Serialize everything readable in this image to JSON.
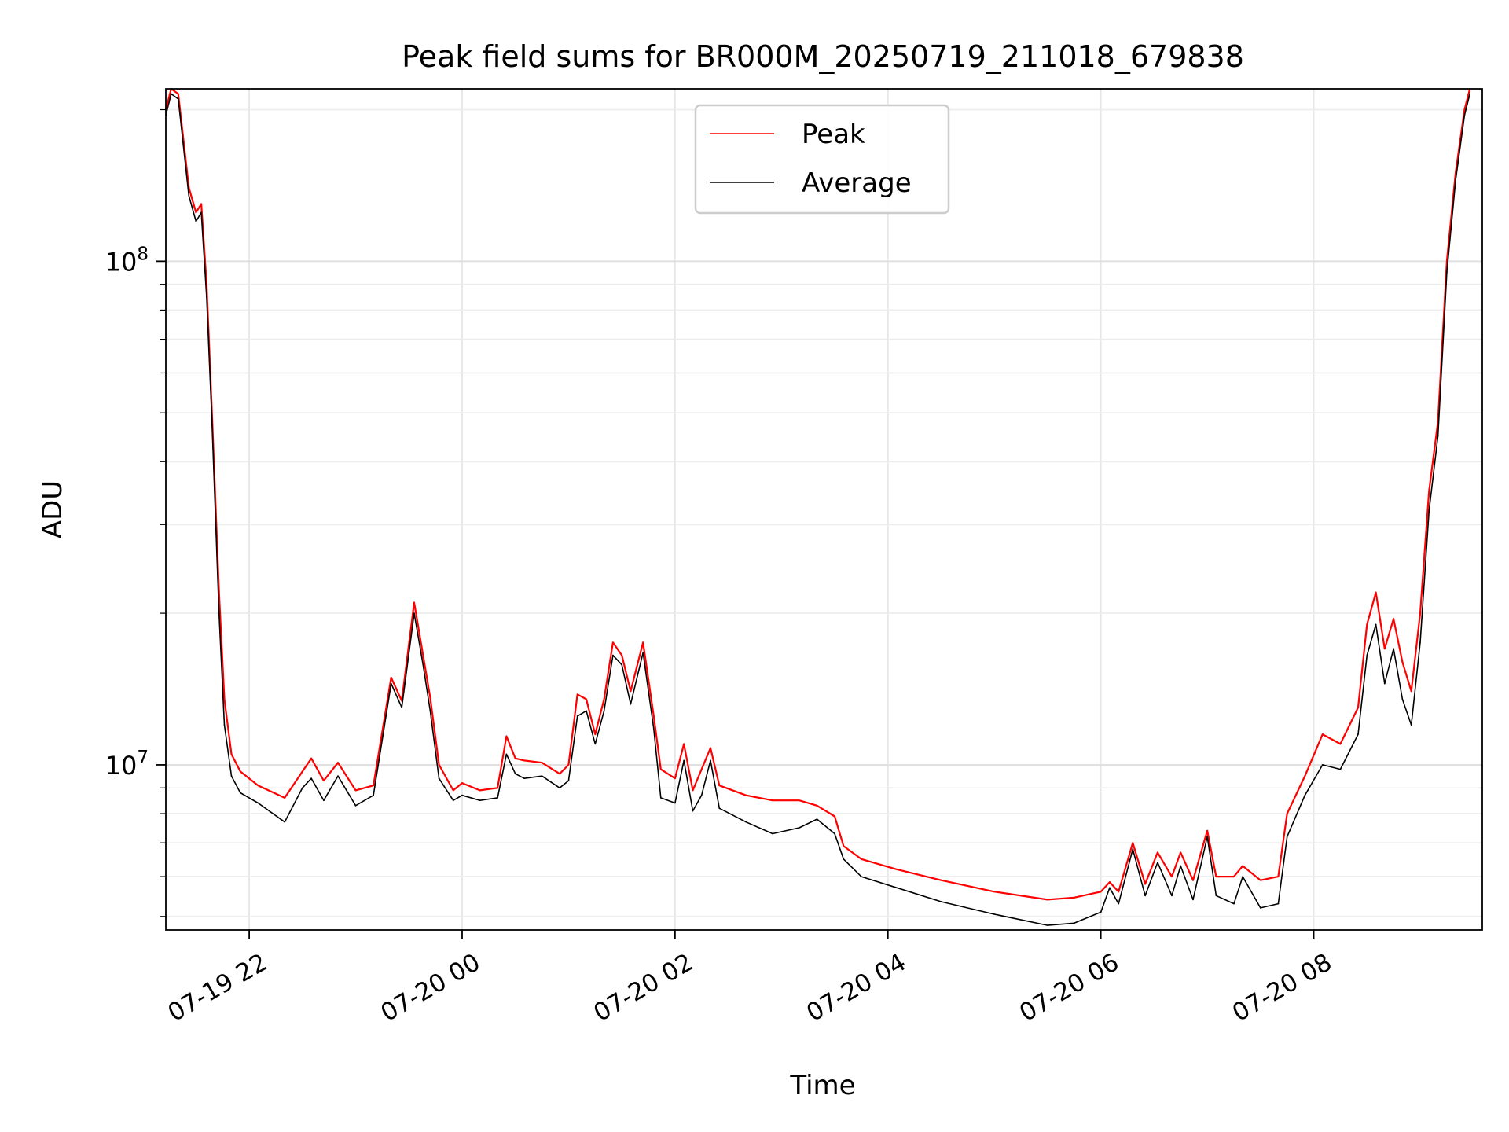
{
  "chart_data": {
    "type": "line",
    "title": "Peak field sums for BR000M_20250719_211018_679838",
    "xlabel": "Time",
    "ylabel": "ADU",
    "yscale": "log",
    "grid": true,
    "legend_position": "upper center",
    "xlim": [
      "2025-07-19 21:13",
      "2025-07-20 09:35"
    ],
    "ylim": [
      4700000,
      220000000
    ],
    "x_ticks": [
      {
        "label": "07-19 22",
        "value": "2025-07-19 22:00"
      },
      {
        "label": "07-20 00",
        "value": "2025-07-20 00:00"
      },
      {
        "label": "07-20 02",
        "value": "2025-07-20 02:00"
      },
      {
        "label": "07-20 04",
        "value": "2025-07-20 04:00"
      },
      {
        "label": "07-20 06",
        "value": "2025-07-20 06:00"
      },
      {
        "label": "07-20 08",
        "value": "2025-07-20 08:00"
      }
    ],
    "y_ticks": [
      {
        "label": "10",
        "sup": "7",
        "value": 10000000
      },
      {
        "label": "10",
        "sup": "8",
        "value": 100000000
      }
    ],
    "series": [
      {
        "name": "Peak",
        "color": "#ff0000",
        "points": [
          [
            "2025-07-19 21:13",
            200000000
          ],
          [
            "2025-07-19 21:16",
            220000000
          ],
          [
            "2025-07-19 21:20",
            215000000
          ],
          [
            "2025-07-19 21:26",
            140000000
          ],
          [
            "2025-07-19 21:30",
            125000000
          ],
          [
            "2025-07-19 21:33",
            130000000
          ],
          [
            "2025-07-19 21:36",
            90000000
          ],
          [
            "2025-07-19 21:39",
            50000000
          ],
          [
            "2025-07-19 21:43",
            22000000
          ],
          [
            "2025-07-19 21:46",
            13500000
          ],
          [
            "2025-07-19 21:50",
            10500000
          ],
          [
            "2025-07-19 21:55",
            9700000
          ],
          [
            "2025-07-19 22:05",
            9100000
          ],
          [
            "2025-07-19 22:20",
            8600000
          ],
          [
            "2025-07-19 22:30",
            9700000
          ],
          [
            "2025-07-19 22:35",
            10300000
          ],
          [
            "2025-07-19 22:42",
            9300000
          ],
          [
            "2025-07-19 22:50",
            10100000
          ],
          [
            "2025-07-19 23:00",
            8900000
          ],
          [
            "2025-07-19 23:10",
            9100000
          ],
          [
            "2025-07-19 23:20",
            14900000
          ],
          [
            "2025-07-19 23:26",
            13400000
          ],
          [
            "2025-07-19 23:33",
            21000000
          ],
          [
            "2025-07-19 23:38",
            16500000
          ],
          [
            "2025-07-19 23:42",
            13600000
          ],
          [
            "2025-07-19 23:47",
            10000000
          ],
          [
            "2025-07-19 23:55",
            8900000
          ],
          [
            "2025-07-20 00:00",
            9200000
          ],
          [
            "2025-07-20 00:10",
            8900000
          ],
          [
            "2025-07-20 00:20",
            9000000
          ],
          [
            "2025-07-20 00:25",
            11400000
          ],
          [
            "2025-07-20 00:30",
            10300000
          ],
          [
            "2025-07-20 00:35",
            10200000
          ],
          [
            "2025-07-20 00:45",
            10100000
          ],
          [
            "2025-07-20 00:55",
            9600000
          ],
          [
            "2025-07-20 01:00",
            10000000
          ],
          [
            "2025-07-20 01:05",
            13800000
          ],
          [
            "2025-07-20 01:10",
            13500000
          ],
          [
            "2025-07-20 01:15",
            11500000
          ],
          [
            "2025-07-20 01:20",
            13500000
          ],
          [
            "2025-07-20 01:25",
            17500000
          ],
          [
            "2025-07-20 01:30",
            16500000
          ],
          [
            "2025-07-20 01:35",
            14000000
          ],
          [
            "2025-07-20 01:42",
            17500000
          ],
          [
            "2025-07-20 01:48",
            12500000
          ],
          [
            "2025-07-20 01:52",
            9800000
          ],
          [
            "2025-07-20 02:00",
            9400000
          ],
          [
            "2025-07-20 02:05",
            11000000
          ],
          [
            "2025-07-20 02:10",
            8900000
          ],
          [
            "2025-07-20 02:15",
            9800000
          ],
          [
            "2025-07-20 02:20",
            10800000
          ],
          [
            "2025-07-20 02:25",
            9100000
          ],
          [
            "2025-07-20 02:40",
            8700000
          ],
          [
            "2025-07-20 02:55",
            8500000
          ],
          [
            "2025-07-20 03:10",
            8500000
          ],
          [
            "2025-07-20 03:20",
            8300000
          ],
          [
            "2025-07-20 03:30",
            7900000
          ],
          [
            "2025-07-20 03:35",
            6900000
          ],
          [
            "2025-07-20 03:45",
            6500000
          ],
          [
            "2025-07-20 04:05",
            6200000
          ],
          [
            "2025-07-20 04:30",
            5900000
          ],
          [
            "2025-07-20 05:00",
            5600000
          ],
          [
            "2025-07-20 05:30",
            5400000
          ],
          [
            "2025-07-20 05:45",
            5450000
          ],
          [
            "2025-07-20 06:00",
            5600000
          ],
          [
            "2025-07-20 06:05",
            5850000
          ],
          [
            "2025-07-20 06:10",
            5600000
          ],
          [
            "2025-07-20 06:18",
            7000000
          ],
          [
            "2025-07-20 06:25",
            5800000
          ],
          [
            "2025-07-20 06:32",
            6700000
          ],
          [
            "2025-07-20 06:40",
            6000000
          ],
          [
            "2025-07-20 06:45",
            6700000
          ],
          [
            "2025-07-20 06:52",
            5900000
          ],
          [
            "2025-07-20 07:00",
            7400000
          ],
          [
            "2025-07-20 07:05",
            6000000
          ],
          [
            "2025-07-20 07:15",
            6000000
          ],
          [
            "2025-07-20 07:20",
            6300000
          ],
          [
            "2025-07-20 07:30",
            5900000
          ],
          [
            "2025-07-20 07:40",
            6000000
          ],
          [
            "2025-07-20 07:45",
            8000000
          ],
          [
            "2025-07-20 07:55",
            9500000
          ],
          [
            "2025-07-20 08:05",
            11500000
          ],
          [
            "2025-07-20 08:15",
            11000000
          ],
          [
            "2025-07-20 08:25",
            13000000
          ],
          [
            "2025-07-20 08:30",
            19000000
          ],
          [
            "2025-07-20 08:35",
            22000000
          ],
          [
            "2025-07-20 08:40",
            17000000
          ],
          [
            "2025-07-20 08:45",
            19500000
          ],
          [
            "2025-07-20 08:50",
            16000000
          ],
          [
            "2025-07-20 08:55",
            14000000
          ],
          [
            "2025-07-20 09:00",
            20000000
          ],
          [
            "2025-07-20 09:05",
            35000000
          ],
          [
            "2025-07-20 09:10",
            48000000
          ],
          [
            "2025-07-20 09:15",
            100000000
          ],
          [
            "2025-07-20 09:20",
            150000000
          ],
          [
            "2025-07-20 09:25",
            200000000
          ],
          [
            "2025-07-20 09:28",
            220000000
          ]
        ]
      },
      {
        "name": "Average",
        "color": "#000000",
        "points": [
          [
            "2025-07-19 21:13",
            195000000
          ],
          [
            "2025-07-19 21:16",
            215000000
          ],
          [
            "2025-07-19 21:20",
            210000000
          ],
          [
            "2025-07-19 21:26",
            135000000
          ],
          [
            "2025-07-19 21:30",
            120000000
          ],
          [
            "2025-07-19 21:33",
            125000000
          ],
          [
            "2025-07-19 21:36",
            85000000
          ],
          [
            "2025-07-19 21:39",
            48000000
          ],
          [
            "2025-07-19 21:43",
            20000000
          ],
          [
            "2025-07-19 21:46",
            12000000
          ],
          [
            "2025-07-19 21:50",
            9500000
          ],
          [
            "2025-07-19 21:55",
            8800000
          ],
          [
            "2025-07-19 22:05",
            8400000
          ],
          [
            "2025-07-19 22:20",
            7700000
          ],
          [
            "2025-07-19 22:30",
            9000000
          ],
          [
            "2025-07-19 22:35",
            9400000
          ],
          [
            "2025-07-19 22:42",
            8500000
          ],
          [
            "2025-07-19 22:50",
            9500000
          ],
          [
            "2025-07-19 23:00",
            8300000
          ],
          [
            "2025-07-19 23:10",
            8700000
          ],
          [
            "2025-07-19 23:20",
            14500000
          ],
          [
            "2025-07-19 23:26",
            13000000
          ],
          [
            "2025-07-19 23:33",
            20000000
          ],
          [
            "2025-07-19 23:38",
            15800000
          ],
          [
            "2025-07-19 23:42",
            12800000
          ],
          [
            "2025-07-19 23:47",
            9400000
          ],
          [
            "2025-07-19 23:55",
            8500000
          ],
          [
            "2025-07-20 00:00",
            8700000
          ],
          [
            "2025-07-20 00:10",
            8500000
          ],
          [
            "2025-07-20 00:20",
            8600000
          ],
          [
            "2025-07-20 00:25",
            10500000
          ],
          [
            "2025-07-20 00:30",
            9600000
          ],
          [
            "2025-07-20 00:35",
            9400000
          ],
          [
            "2025-07-20 00:45",
            9500000
          ],
          [
            "2025-07-20 00:55",
            9000000
          ],
          [
            "2025-07-20 01:00",
            9300000
          ],
          [
            "2025-07-20 01:05",
            12500000
          ],
          [
            "2025-07-20 01:10",
            12800000
          ],
          [
            "2025-07-20 01:15",
            11000000
          ],
          [
            "2025-07-20 01:20",
            12800000
          ],
          [
            "2025-07-20 01:25",
            16500000
          ],
          [
            "2025-07-20 01:30",
            15800000
          ],
          [
            "2025-07-20 01:35",
            13200000
          ],
          [
            "2025-07-20 01:42",
            16700000
          ],
          [
            "2025-07-20 01:48",
            11800000
          ],
          [
            "2025-07-20 01:52",
            8600000
          ],
          [
            "2025-07-20 02:00",
            8400000
          ],
          [
            "2025-07-20 02:05",
            10200000
          ],
          [
            "2025-07-20 02:10",
            8100000
          ],
          [
            "2025-07-20 02:15",
            8700000
          ],
          [
            "2025-07-20 02:20",
            10200000
          ],
          [
            "2025-07-20 02:25",
            8200000
          ],
          [
            "2025-07-20 02:40",
            7700000
          ],
          [
            "2025-07-20 02:55",
            7300000
          ],
          [
            "2025-07-20 03:10",
            7500000
          ],
          [
            "2025-07-20 03:20",
            7800000
          ],
          [
            "2025-07-20 03:30",
            7300000
          ],
          [
            "2025-07-20 03:35",
            6500000
          ],
          [
            "2025-07-20 03:45",
            6000000
          ],
          [
            "2025-07-20 04:05",
            5700000
          ],
          [
            "2025-07-20 04:30",
            5350000
          ],
          [
            "2025-07-20 05:00",
            5050000
          ],
          [
            "2025-07-20 05:30",
            4800000
          ],
          [
            "2025-07-20 05:45",
            4850000
          ],
          [
            "2025-07-20 06:00",
            5100000
          ],
          [
            "2025-07-20 06:05",
            5700000
          ],
          [
            "2025-07-20 06:10",
            5300000
          ],
          [
            "2025-07-20 06:18",
            6800000
          ],
          [
            "2025-07-20 06:25",
            5500000
          ],
          [
            "2025-07-20 06:32",
            6400000
          ],
          [
            "2025-07-20 06:40",
            5500000
          ],
          [
            "2025-07-20 06:45",
            6300000
          ],
          [
            "2025-07-20 06:52",
            5400000
          ],
          [
            "2025-07-20 07:00",
            7200000
          ],
          [
            "2025-07-20 07:05",
            5500000
          ],
          [
            "2025-07-20 07:15",
            5300000
          ],
          [
            "2025-07-20 07:20",
            6000000
          ],
          [
            "2025-07-20 07:30",
            5200000
          ],
          [
            "2025-07-20 07:40",
            5300000
          ],
          [
            "2025-07-20 07:45",
            7200000
          ],
          [
            "2025-07-20 07:55",
            8700000
          ],
          [
            "2025-07-20 08:05",
            10000000
          ],
          [
            "2025-07-20 08:15",
            9800000
          ],
          [
            "2025-07-20 08:25",
            11500000
          ],
          [
            "2025-07-20 08:30",
            16500000
          ],
          [
            "2025-07-20 08:35",
            19000000
          ],
          [
            "2025-07-20 08:40",
            14500000
          ],
          [
            "2025-07-20 08:45",
            17000000
          ],
          [
            "2025-07-20 08:50",
            13500000
          ],
          [
            "2025-07-20 08:55",
            12000000
          ],
          [
            "2025-07-20 09:00",
            17500000
          ],
          [
            "2025-07-20 09:05",
            32000000
          ],
          [
            "2025-07-20 09:10",
            45000000
          ],
          [
            "2025-07-20 09:15",
            95000000
          ],
          [
            "2025-07-20 09:20",
            145000000
          ],
          [
            "2025-07-20 09:25",
            195000000
          ],
          [
            "2025-07-20 09:28",
            215000000
          ]
        ]
      }
    ]
  }
}
